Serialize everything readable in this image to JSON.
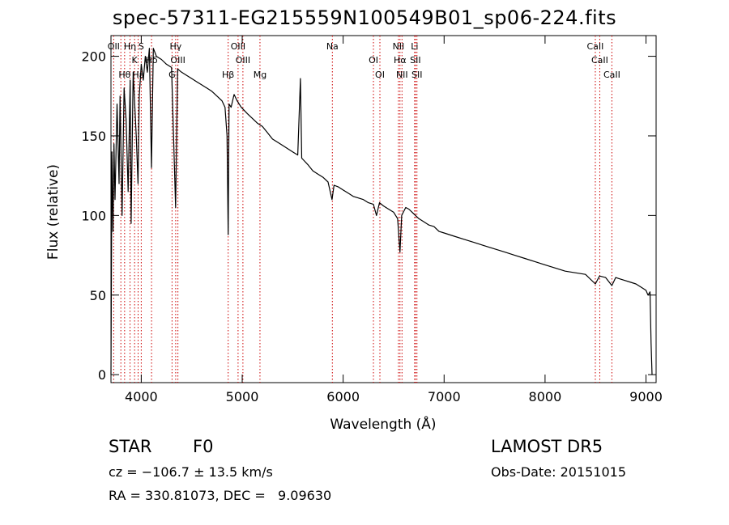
{
  "title": "spec-57311-EG215559N100549B01_sp06-224.fits",
  "info": {
    "class": "STAR",
    "subclass": "F0",
    "survey": "LAMOST DR5",
    "redshift": "cz = −106.7 ± 13.5 km/s",
    "obs_date": "Obs-Date: 20151015",
    "coords": "RA = 330.81073, DEC =   9.09630"
  },
  "chart_data": {
    "type": "line",
    "xlabel": "Wavelength (Å)",
    "ylabel": "Flux (relative)",
    "xlim": [
      3700,
      9100
    ],
    "ylim": [
      -5,
      213
    ],
    "xticks": [
      4000,
      5000,
      6000,
      7000,
      8000,
      9000
    ],
    "yticks": [
      0,
      50,
      100,
      150,
      200
    ],
    "grid": false,
    "series": [
      {
        "x": [
          3700,
          3710,
          3720,
          3730,
          3740,
          3760,
          3780,
          3790,
          3810,
          3830,
          3850,
          3870,
          3890,
          3900,
          3920,
          3935,
          3950,
          3968,
          3980,
          4000,
          4020,
          4040,
          4060,
          4080,
          4101,
          4120,
          4150,
          4200,
          4250,
          4300,
          4340,
          4360,
          4400,
          4450,
          4500,
          4550,
          4600,
          4650,
          4700,
          4750,
          4800,
          4830,
          4850,
          4861,
          4870,
          4890,
          4920,
          4950,
          4990,
          5050,
          5100,
          5150,
          5200,
          5250,
          5300,
          5350,
          5400,
          5450,
          5500,
          5550,
          5577,
          5590,
          5620,
          5650,
          5700,
          5750,
          5800,
          5850,
          5890,
          5910,
          5950,
          6000,
          6050,
          6100,
          6150,
          6200,
          6250,
          6300,
          6330,
          6360,
          6400,
          6450,
          6500,
          6540,
          6563,
          6580,
          6620,
          6650,
          6700,
          6750,
          6800,
          6850,
          6900,
          6950,
          7000,
          7100,
          7200,
          7300,
          7400,
          7500,
          7600,
          7700,
          7800,
          7900,
          8000,
          8100,
          8200,
          8300,
          8400,
          8498,
          8540,
          8600,
          8662,
          8700,
          8800,
          8850,
          8900,
          8950,
          9000,
          9020,
          9040,
          9050,
          9060
        ],
        "y": [
          0,
          140,
          90,
          145,
          110,
          170,
          120,
          175,
          100,
          180,
          160,
          115,
          185,
          95,
          190,
          170,
          150,
          120,
          175,
          195,
          185,
          200,
          190,
          205,
          130,
          205,
          200,
          198,
          195,
          193,
          105,
          192,
          190,
          188,
          186,
          184,
          182,
          180,
          178,
          175,
          172,
          168,
          150,
          88,
          170,
          168,
          176,
          172,
          168,
          164,
          161,
          158,
          156,
          152,
          148,
          146,
          144,
          142,
          140,
          138,
          186,
          136,
          134,
          132,
          128,
          126,
          124,
          121,
          110,
          119,
          118,
          116,
          114,
          112,
          111,
          110,
          108,
          107,
          100,
          108,
          106,
          104,
          102,
          98,
          77,
          100,
          105,
          104,
          101,
          98,
          96,
          94,
          93,
          90,
          89,
          87,
          85,
          83,
          81,
          79,
          77,
          75,
          73,
          71,
          69,
          67,
          65,
          64,
          63,
          57,
          62,
          61,
          56,
          61,
          59,
          58,
          57,
          55,
          53,
          50,
          52,
          20,
          0
        ]
      }
    ],
    "lines": [
      {
        "wavelength": 3727,
        "labels": [
          "OII"
        ]
      },
      {
        "wavelength": 3798,
        "labels": [
          ""
        ]
      },
      {
        "wavelength": 3835,
        "labels": [
          "Hθ"
        ]
      },
      {
        "wavelength": 3889,
        "labels": [
          "Hη"
        ]
      },
      {
        "wavelength": 3934,
        "labels": [
          "K"
        ]
      },
      {
        "wavelength": 3969,
        "labels": [
          "Hε"
        ]
      },
      {
        "wavelength": 4000,
        "labels": [
          "S"
        ]
      },
      {
        "wavelength": 4102,
        "labels": [
          "Hδ"
        ]
      },
      {
        "wavelength": 4305,
        "labels": [
          "G"
        ]
      },
      {
        "wavelength": 4341,
        "labels": [
          "Hγ"
        ]
      },
      {
        "wavelength": 4363,
        "labels": [
          "OIII"
        ]
      },
      {
        "wavelength": 4861,
        "labels": [
          "Hβ"
        ]
      },
      {
        "wavelength": 4959,
        "labels": [
          "OIII"
        ]
      },
      {
        "wavelength": 5007,
        "labels": [
          "OIII"
        ]
      },
      {
        "wavelength": 5176,
        "labels": [
          "Mg"
        ]
      },
      {
        "wavelength": 5893,
        "labels": [
          "Na"
        ]
      },
      {
        "wavelength": 6300,
        "labels": [
          "OI"
        ]
      },
      {
        "wavelength": 6364,
        "labels": [
          "OI"
        ]
      },
      {
        "wavelength": 6548,
        "labels": [
          "NII"
        ]
      },
      {
        "wavelength": 6563,
        "labels": [
          "Hα"
        ]
      },
      {
        "wavelength": 6583,
        "labels": [
          "NII"
        ]
      },
      {
        "wavelength": 6708,
        "labels": [
          "Li"
        ]
      },
      {
        "wavelength": 6716,
        "labels": [
          "SII"
        ]
      },
      {
        "wavelength": 6731,
        "labels": [
          "SII"
        ]
      },
      {
        "wavelength": 8498,
        "labels": [
          "CaII"
        ]
      },
      {
        "wavelength": 8542,
        "labels": [
          "CaII"
        ]
      },
      {
        "wavelength": 8662,
        "labels": [
          "CaII"
        ]
      }
    ],
    "marker_color": "#cc0000",
    "line_color": "#000000"
  }
}
